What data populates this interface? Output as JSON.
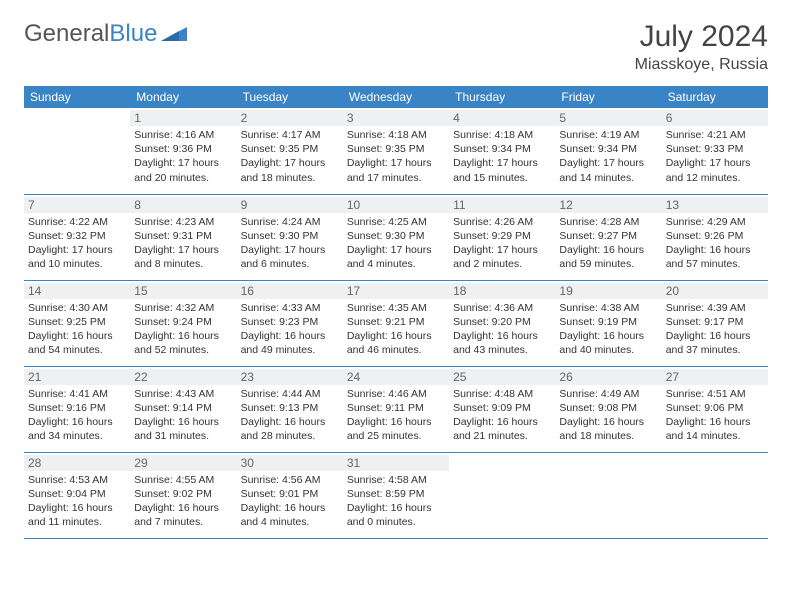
{
  "brand": {
    "part1": "General",
    "part2": "Blue"
  },
  "header": {
    "title": "July 2024",
    "location": "Miasskoye, Russia"
  },
  "colors": {
    "header_bg": "#3a84c5",
    "header_text": "#ffffff",
    "border": "#3a84c5",
    "daynum_bg": "#eef0f1",
    "text": "#333333",
    "background": "#ffffff"
  },
  "weekdays": [
    "Sunday",
    "Monday",
    "Tuesday",
    "Wednesday",
    "Thursday",
    "Friday",
    "Saturday"
  ],
  "weeks": [
    [
      null,
      {
        "n": "1",
        "sr": "4:16 AM",
        "ss": "9:36 PM",
        "dl": "17 hours and 20 minutes."
      },
      {
        "n": "2",
        "sr": "4:17 AM",
        "ss": "9:35 PM",
        "dl": "17 hours and 18 minutes."
      },
      {
        "n": "3",
        "sr": "4:18 AM",
        "ss": "9:35 PM",
        "dl": "17 hours and 17 minutes."
      },
      {
        "n": "4",
        "sr": "4:18 AM",
        "ss": "9:34 PM",
        "dl": "17 hours and 15 minutes."
      },
      {
        "n": "5",
        "sr": "4:19 AM",
        "ss": "9:34 PM",
        "dl": "17 hours and 14 minutes."
      },
      {
        "n": "6",
        "sr": "4:21 AM",
        "ss": "9:33 PM",
        "dl": "17 hours and 12 minutes."
      }
    ],
    [
      {
        "n": "7",
        "sr": "4:22 AM",
        "ss": "9:32 PM",
        "dl": "17 hours and 10 minutes."
      },
      {
        "n": "8",
        "sr": "4:23 AM",
        "ss": "9:31 PM",
        "dl": "17 hours and 8 minutes."
      },
      {
        "n": "9",
        "sr": "4:24 AM",
        "ss": "9:30 PM",
        "dl": "17 hours and 6 minutes."
      },
      {
        "n": "10",
        "sr": "4:25 AM",
        "ss": "9:30 PM",
        "dl": "17 hours and 4 minutes."
      },
      {
        "n": "11",
        "sr": "4:26 AM",
        "ss": "9:29 PM",
        "dl": "17 hours and 2 minutes."
      },
      {
        "n": "12",
        "sr": "4:28 AM",
        "ss": "9:27 PM",
        "dl": "16 hours and 59 minutes."
      },
      {
        "n": "13",
        "sr": "4:29 AM",
        "ss": "9:26 PM",
        "dl": "16 hours and 57 minutes."
      }
    ],
    [
      {
        "n": "14",
        "sr": "4:30 AM",
        "ss": "9:25 PM",
        "dl": "16 hours and 54 minutes."
      },
      {
        "n": "15",
        "sr": "4:32 AM",
        "ss": "9:24 PM",
        "dl": "16 hours and 52 minutes."
      },
      {
        "n": "16",
        "sr": "4:33 AM",
        "ss": "9:23 PM",
        "dl": "16 hours and 49 minutes."
      },
      {
        "n": "17",
        "sr": "4:35 AM",
        "ss": "9:21 PM",
        "dl": "16 hours and 46 minutes."
      },
      {
        "n": "18",
        "sr": "4:36 AM",
        "ss": "9:20 PM",
        "dl": "16 hours and 43 minutes."
      },
      {
        "n": "19",
        "sr": "4:38 AM",
        "ss": "9:19 PM",
        "dl": "16 hours and 40 minutes."
      },
      {
        "n": "20",
        "sr": "4:39 AM",
        "ss": "9:17 PM",
        "dl": "16 hours and 37 minutes."
      }
    ],
    [
      {
        "n": "21",
        "sr": "4:41 AM",
        "ss": "9:16 PM",
        "dl": "16 hours and 34 minutes."
      },
      {
        "n": "22",
        "sr": "4:43 AM",
        "ss": "9:14 PM",
        "dl": "16 hours and 31 minutes."
      },
      {
        "n": "23",
        "sr": "4:44 AM",
        "ss": "9:13 PM",
        "dl": "16 hours and 28 minutes."
      },
      {
        "n": "24",
        "sr": "4:46 AM",
        "ss": "9:11 PM",
        "dl": "16 hours and 25 minutes."
      },
      {
        "n": "25",
        "sr": "4:48 AM",
        "ss": "9:09 PM",
        "dl": "16 hours and 21 minutes."
      },
      {
        "n": "26",
        "sr": "4:49 AM",
        "ss": "9:08 PM",
        "dl": "16 hours and 18 minutes."
      },
      {
        "n": "27",
        "sr": "4:51 AM",
        "ss": "9:06 PM",
        "dl": "16 hours and 14 minutes."
      }
    ],
    [
      {
        "n": "28",
        "sr": "4:53 AM",
        "ss": "9:04 PM",
        "dl": "16 hours and 11 minutes."
      },
      {
        "n": "29",
        "sr": "4:55 AM",
        "ss": "9:02 PM",
        "dl": "16 hours and 7 minutes."
      },
      {
        "n": "30",
        "sr": "4:56 AM",
        "ss": "9:01 PM",
        "dl": "16 hours and 4 minutes."
      },
      {
        "n": "31",
        "sr": "4:58 AM",
        "ss": "8:59 PM",
        "dl": "16 hours and 0 minutes."
      },
      null,
      null,
      null
    ]
  ],
  "labels": {
    "sunrise": "Sunrise: ",
    "sunset": "Sunset: ",
    "daylight": "Daylight: "
  }
}
